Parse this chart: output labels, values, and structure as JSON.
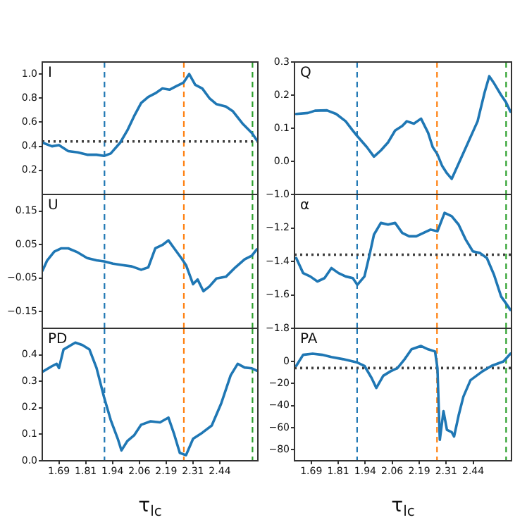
{
  "chart_data": [
    {
      "type": "line",
      "annotations": [
        "I"
      ],
      "xlim": [
        1.61,
        2.615
      ],
      "ylim": [
        0,
        1.1
      ],
      "tick_labels": "y",
      "yticks": [
        0.2,
        0.4,
        0.6,
        0.8,
        {
          "value": 1,
          "label": "1.0"
        }
      ],
      "x": [
        1.611,
        1.655,
        1.688,
        1.731,
        1.775,
        1.819,
        1.863,
        1.898,
        1.929,
        1.973,
        2.006,
        2.038,
        2.071,
        2.104,
        2.137,
        2.17,
        2.203,
        2.236,
        2.269,
        2.295,
        2.323,
        2.356,
        2.389,
        2.422,
        2.466,
        2.499,
        2.543,
        2.587,
        2.61
      ],
      "series": [
        {
          "color": "#1f77b4",
          "values": [
            0.43,
            0.4,
            0.41,
            0.36,
            0.35,
            0.33,
            0.33,
            0.32,
            0.34,
            0.43,
            0.53,
            0.65,
            0.76,
            0.81,
            0.84,
            0.88,
            0.87,
            0.9,
            0.93,
            1.0,
            0.91,
            0.88,
            0.8,
            0.75,
            0.73,
            0.69,
            0.59,
            0.51,
            0.45
          ]
        }
      ],
      "ref_lines": [
        {
          "axis": "x",
          "value": 1.9,
          "color": "#1f77b4",
          "line_style": "dashed"
        },
        {
          "axis": "x",
          "value": 2.27,
          "color": "#ff7f0e",
          "line_style": "dashed"
        },
        {
          "axis": "x",
          "value": 2.59,
          "color": "#2ca02c",
          "line_style": "dashed"
        },
        {
          "axis": "y",
          "value": 0.44,
          "color": "#404040",
          "line_style": "dotted"
        }
      ]
    },
    {
      "type": "line",
      "annotations": [
        "Q"
      ],
      "xlim": [
        1.61,
        2.615
      ],
      "ylim": [
        -0.1,
        0.3
      ],
      "tick_labels": "y",
      "yticks": [
        {
          "value": 0,
          "label": "0.0"
        },
        0.1,
        0.2,
        0.3
      ],
      "x": [
        1.618,
        1.672,
        1.705,
        1.76,
        1.803,
        1.847,
        1.88,
        1.901,
        1.945,
        1.978,
        2.01,
        2.043,
        2.076,
        2.109,
        2.13,
        2.163,
        2.196,
        2.229,
        2.25,
        2.272,
        2.294,
        2.316,
        2.338,
        2.37,
        2.414,
        2.458,
        2.49,
        2.512,
        2.534,
        2.567,
        2.589,
        2.61
      ],
      "series": [
        {
          "color": "#1f77b4",
          "values": [
            0.143,
            0.146,
            0.153,
            0.154,
            0.143,
            0.121,
            0.093,
            0.076,
            0.043,
            0.014,
            0.033,
            0.057,
            0.093,
            0.107,
            0.121,
            0.114,
            0.129,
            0.086,
            0.043,
            0.021,
            -0.014,
            -0.036,
            -0.053,
            -0.007,
            0.057,
            0.121,
            0.207,
            0.257,
            0.236,
            0.2,
            0.179,
            0.15
          ]
        }
      ],
      "ref_lines": [
        {
          "axis": "x",
          "value": 1.9,
          "color": "#1f77b4",
          "line_style": "dashed"
        },
        {
          "axis": "x",
          "value": 2.27,
          "color": "#ff7f0e",
          "line_style": "dashed"
        },
        {
          "axis": "x",
          "value": 2.59,
          "color": "#2ca02c",
          "line_style": "dashed"
        }
      ]
    },
    {
      "type": "line",
      "annotations": [
        "U"
      ],
      "xlim": [
        1.61,
        2.615
      ],
      "ylim": [
        -0.2,
        0.2
      ],
      "tick_labels": "y",
      "yticks": [
        {
          "value": -0.15,
          "label": "−0.15"
        },
        {
          "value": -0.05,
          "label": "−0.05"
        },
        0.05,
        0.15
      ],
      "x": [
        1.611,
        1.633,
        1.666,
        1.699,
        1.731,
        1.775,
        1.819,
        1.863,
        1.898,
        1.94,
        1.984,
        2.027,
        2.071,
        2.104,
        2.137,
        2.17,
        2.198,
        2.225,
        2.258,
        2.28,
        2.313,
        2.334,
        2.361,
        2.389,
        2.422,
        2.466,
        2.51,
        2.553,
        2.587,
        2.61
      ],
      "series": [
        {
          "color": "#1f77b4",
          "values": [
            -0.028,
            0.003,
            0.029,
            0.039,
            0.039,
            0.027,
            0.01,
            0.003,
            0,
            -0.007,
            -0.011,
            -0.015,
            -0.025,
            -0.018,
            0.039,
            0.049,
            0.063,
            0.039,
            0.01,
            -0.011,
            -0.068,
            -0.054,
            -0.089,
            -0.075,
            -0.051,
            -0.046,
            -0.018,
            0.006,
            0.017,
            0.036
          ]
        }
      ],
      "ref_lines": [
        {
          "axis": "x",
          "value": 1.9,
          "color": "#1f77b4",
          "line_style": "dashed"
        },
        {
          "axis": "x",
          "value": 2.27,
          "color": "#ff7f0e",
          "line_style": "dashed"
        },
        {
          "axis": "x",
          "value": 2.59,
          "color": "#2ca02c",
          "line_style": "dashed"
        }
      ]
    },
    {
      "type": "line",
      "annotations": [
        "α"
      ],
      "xlim": [
        1.61,
        2.615
      ],
      "ylim": [
        -1.8,
        -1.0
      ],
      "tick_labels": "y",
      "yticks": [
        {
          "value": -1.8,
          "label": "−1.8"
        },
        {
          "value": -1.6,
          "label": "−1.6"
        },
        {
          "value": -1.4,
          "label": "−1.4"
        },
        {
          "value": -1.2,
          "label": "−1.2"
        },
        {
          "value": -1.0,
          "label": "−1.0"
        }
      ],
      "x": [
        1.618,
        1.65,
        1.683,
        1.716,
        1.749,
        1.781,
        1.814,
        1.847,
        1.88,
        1.901,
        1.934,
        1.956,
        1.978,
        2.01,
        2.043,
        2.076,
        2.109,
        2.141,
        2.174,
        2.207,
        2.24,
        2.272,
        2.305,
        2.338,
        2.37,
        2.403,
        2.436,
        2.469,
        2.501,
        2.534,
        2.567,
        2.589,
        2.61
      ],
      "series": [
        {
          "color": "#1f77b4",
          "values": [
            -1.38,
            -1.47,
            -1.49,
            -1.52,
            -1.5,
            -1.44,
            -1.47,
            -1.49,
            -1.5,
            -1.54,
            -1.49,
            -1.37,
            -1.24,
            -1.17,
            -1.18,
            -1.17,
            -1.23,
            -1.25,
            -1.25,
            -1.23,
            -1.21,
            -1.22,
            -1.11,
            -1.13,
            -1.18,
            -1.27,
            -1.34,
            -1.35,
            -1.38,
            -1.48,
            -1.61,
            -1.65,
            -1.69
          ]
        }
      ],
      "ref_lines": [
        {
          "axis": "x",
          "value": 1.9,
          "color": "#1f77b4",
          "line_style": "dashed"
        },
        {
          "axis": "x",
          "value": 2.27,
          "color": "#ff7f0e",
          "line_style": "dashed"
        },
        {
          "axis": "x",
          "value": 2.59,
          "color": "#2ca02c",
          "line_style": "dashed"
        },
        {
          "axis": "y",
          "value": -1.36,
          "color": "#404040",
          "line_style": "dotted"
        }
      ]
    },
    {
      "type": "line",
      "annotations": [
        "PD"
      ],
      "xlabel": "τ$_{lc}$",
      "xlim": [
        1.61,
        2.615
      ],
      "ylim": [
        0,
        0.5
      ],
      "xticks": [
        {
          "value": 1.6875,
          "label": "1.69"
        },
        {
          "value": 1.8125,
          "label": "1.81"
        },
        {
          "value": 1.9375,
          "label": "1.94"
        },
        {
          "value": 2.0625,
          "label": "2.06"
        },
        {
          "value": 2.1875,
          "label": "2.19"
        },
        {
          "value": 2.3125,
          "label": "2.31"
        },
        {
          "value": 2.4375,
          "label": "2.44"
        }
      ],
      "yticks": [
        {
          "value": 0,
          "label": "0.0"
        },
        0.1,
        0.2,
        0.3,
        0.4
      ],
      "x": [
        1.611,
        1.655,
        1.677,
        1.688,
        1.709,
        1.764,
        1.797,
        1.83,
        1.863,
        1.898,
        1.929,
        1.962,
        1.979,
        2.006,
        2.038,
        2.071,
        2.115,
        2.159,
        2.198,
        2.225,
        2.251,
        2.28,
        2.313,
        2.356,
        2.4,
        2.444,
        2.488,
        2.521,
        2.553,
        2.587,
        2.61
      ],
      "series": [
        {
          "color": "#1f77b4",
          "values": [
            0.336,
            0.357,
            0.366,
            0.35,
            0.42,
            0.446,
            0.437,
            0.42,
            0.35,
            0.24,
            0.154,
            0.083,
            0.039,
            0.074,
            0.096,
            0.136,
            0.149,
            0.145,
            0.163,
            0.1,
            0.03,
            0.021,
            0.083,
            0.106,
            0.133,
            0.216,
            0.322,
            0.366,
            0.352,
            0.349,
            0.34
          ]
        }
      ],
      "ref_lines": [
        {
          "axis": "x",
          "value": 1.9,
          "color": "#1f77b4",
          "line_style": "dashed"
        },
        {
          "axis": "x",
          "value": 2.27,
          "color": "#ff7f0e",
          "line_style": "dashed"
        },
        {
          "axis": "x",
          "value": 2.59,
          "color": "#2ca02c",
          "line_style": "dashed"
        }
      ]
    },
    {
      "type": "line",
      "annotations": [
        "PA"
      ],
      "xlabel": "τ$_{lc}$",
      "xlim": [
        1.61,
        2.615
      ],
      "ylim": [
        -90,
        30
      ],
      "xticks": [
        {
          "value": 1.6875,
          "label": "1.69"
        },
        {
          "value": 1.8125,
          "label": "1.81"
        },
        {
          "value": 1.9375,
          "label": "1.94"
        },
        {
          "value": 2.0625,
          "label": "2.06"
        },
        {
          "value": 2.1875,
          "label": "2.19"
        },
        {
          "value": 2.3125,
          "label": "2.31"
        },
        {
          "value": 2.4375,
          "label": "2.44"
        }
      ],
      "yticks": [
        {
          "value": -80,
          "label": "−80"
        },
        {
          "value": -60,
          "label": "−60"
        },
        {
          "value": -40,
          "label": "−40"
        },
        {
          "value": -20,
          "label": "−20"
        },
        0
      ],
      "x": [
        1.618,
        1.65,
        1.694,
        1.738,
        1.781,
        1.836,
        1.901,
        1.934,
        1.967,
        1.989,
        2.021,
        2.054,
        2.087,
        2.12,
        2.152,
        2.196,
        2.229,
        2.261,
        2.272,
        2.283,
        2.3,
        2.316,
        2.338,
        2.349,
        2.37,
        2.392,
        2.425,
        2.48,
        2.523,
        2.578,
        2.61
      ],
      "series": [
        {
          "color": "#1f77b4",
          "values": [
            -4,
            6,
            7,
            6,
            4,
            2,
            -1,
            -4,
            -15,
            -24,
            -13,
            -9,
            -6,
            2,
            11,
            14,
            11,
            9,
            -6,
            -71,
            -45,
            -62,
            -64,
            -68,
            -49,
            -32,
            -17,
            -9,
            -4,
            0,
            7
          ]
        }
      ],
      "ref_lines": [
        {
          "axis": "x",
          "value": 1.9,
          "color": "#1f77b4",
          "line_style": "dashed"
        },
        {
          "axis": "x",
          "value": 2.27,
          "color": "#ff7f0e",
          "line_style": "dashed"
        },
        {
          "axis": "x",
          "value": 2.59,
          "color": "#2ca02c",
          "line_style": "dashed"
        },
        {
          "axis": "y",
          "value": -6,
          "color": "#404040",
          "line_style": "dotted"
        }
      ]
    }
  ]
}
